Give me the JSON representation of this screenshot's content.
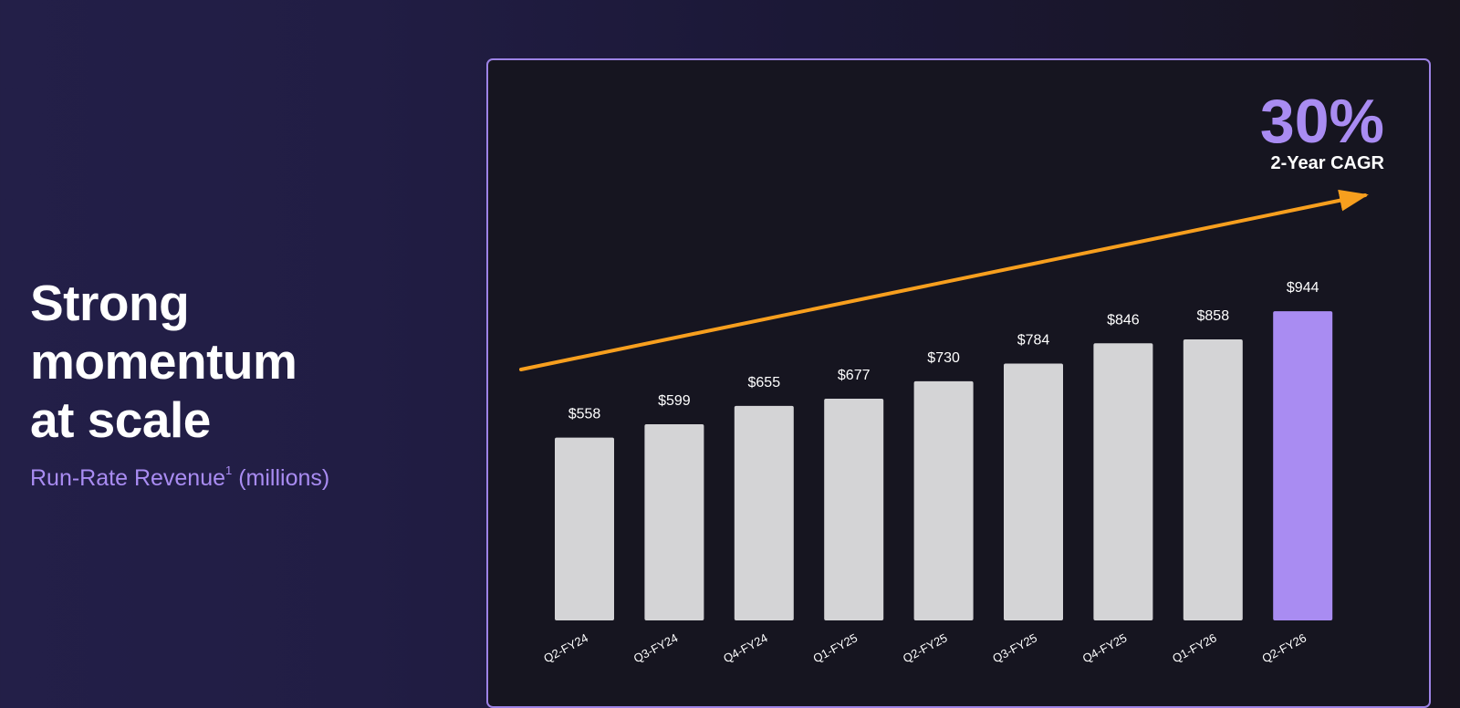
{
  "headline": {
    "lines": [
      "Strong",
      "momentum",
      "at scale"
    ]
  },
  "subtitle": {
    "text": "Run-Rate Revenue",
    "footnote": "1",
    "unit": "(millions)"
  },
  "chart_data": {
    "type": "bar",
    "categories": [
      "Q2-FY24",
      "Q3-FY24",
      "Q4-FY24",
      "Q1-FY25",
      "Q2-FY25",
      "Q3-FY25",
      "Q4-FY25",
      "Q1-FY26",
      "Q2-FY26"
    ],
    "values": [
      558,
      599,
      655,
      677,
      730,
      784,
      846,
      858,
      944
    ],
    "value_labels": [
      "$558",
      "$599",
      "$655",
      "$677",
      "$730",
      "$784",
      "$846",
      "$858",
      "$944"
    ],
    "ylim": [
      0,
      1000
    ],
    "grid": false,
    "legend": "none",
    "highlight_index": 8,
    "colors": {
      "bar": "#d4d4d6",
      "highlight": "#a98cf2",
      "trend_arrow": "#f79f1e",
      "panel_border": "#9d83e6"
    },
    "annotation": {
      "value": "30%",
      "label": "2-Year CAGR"
    }
  }
}
